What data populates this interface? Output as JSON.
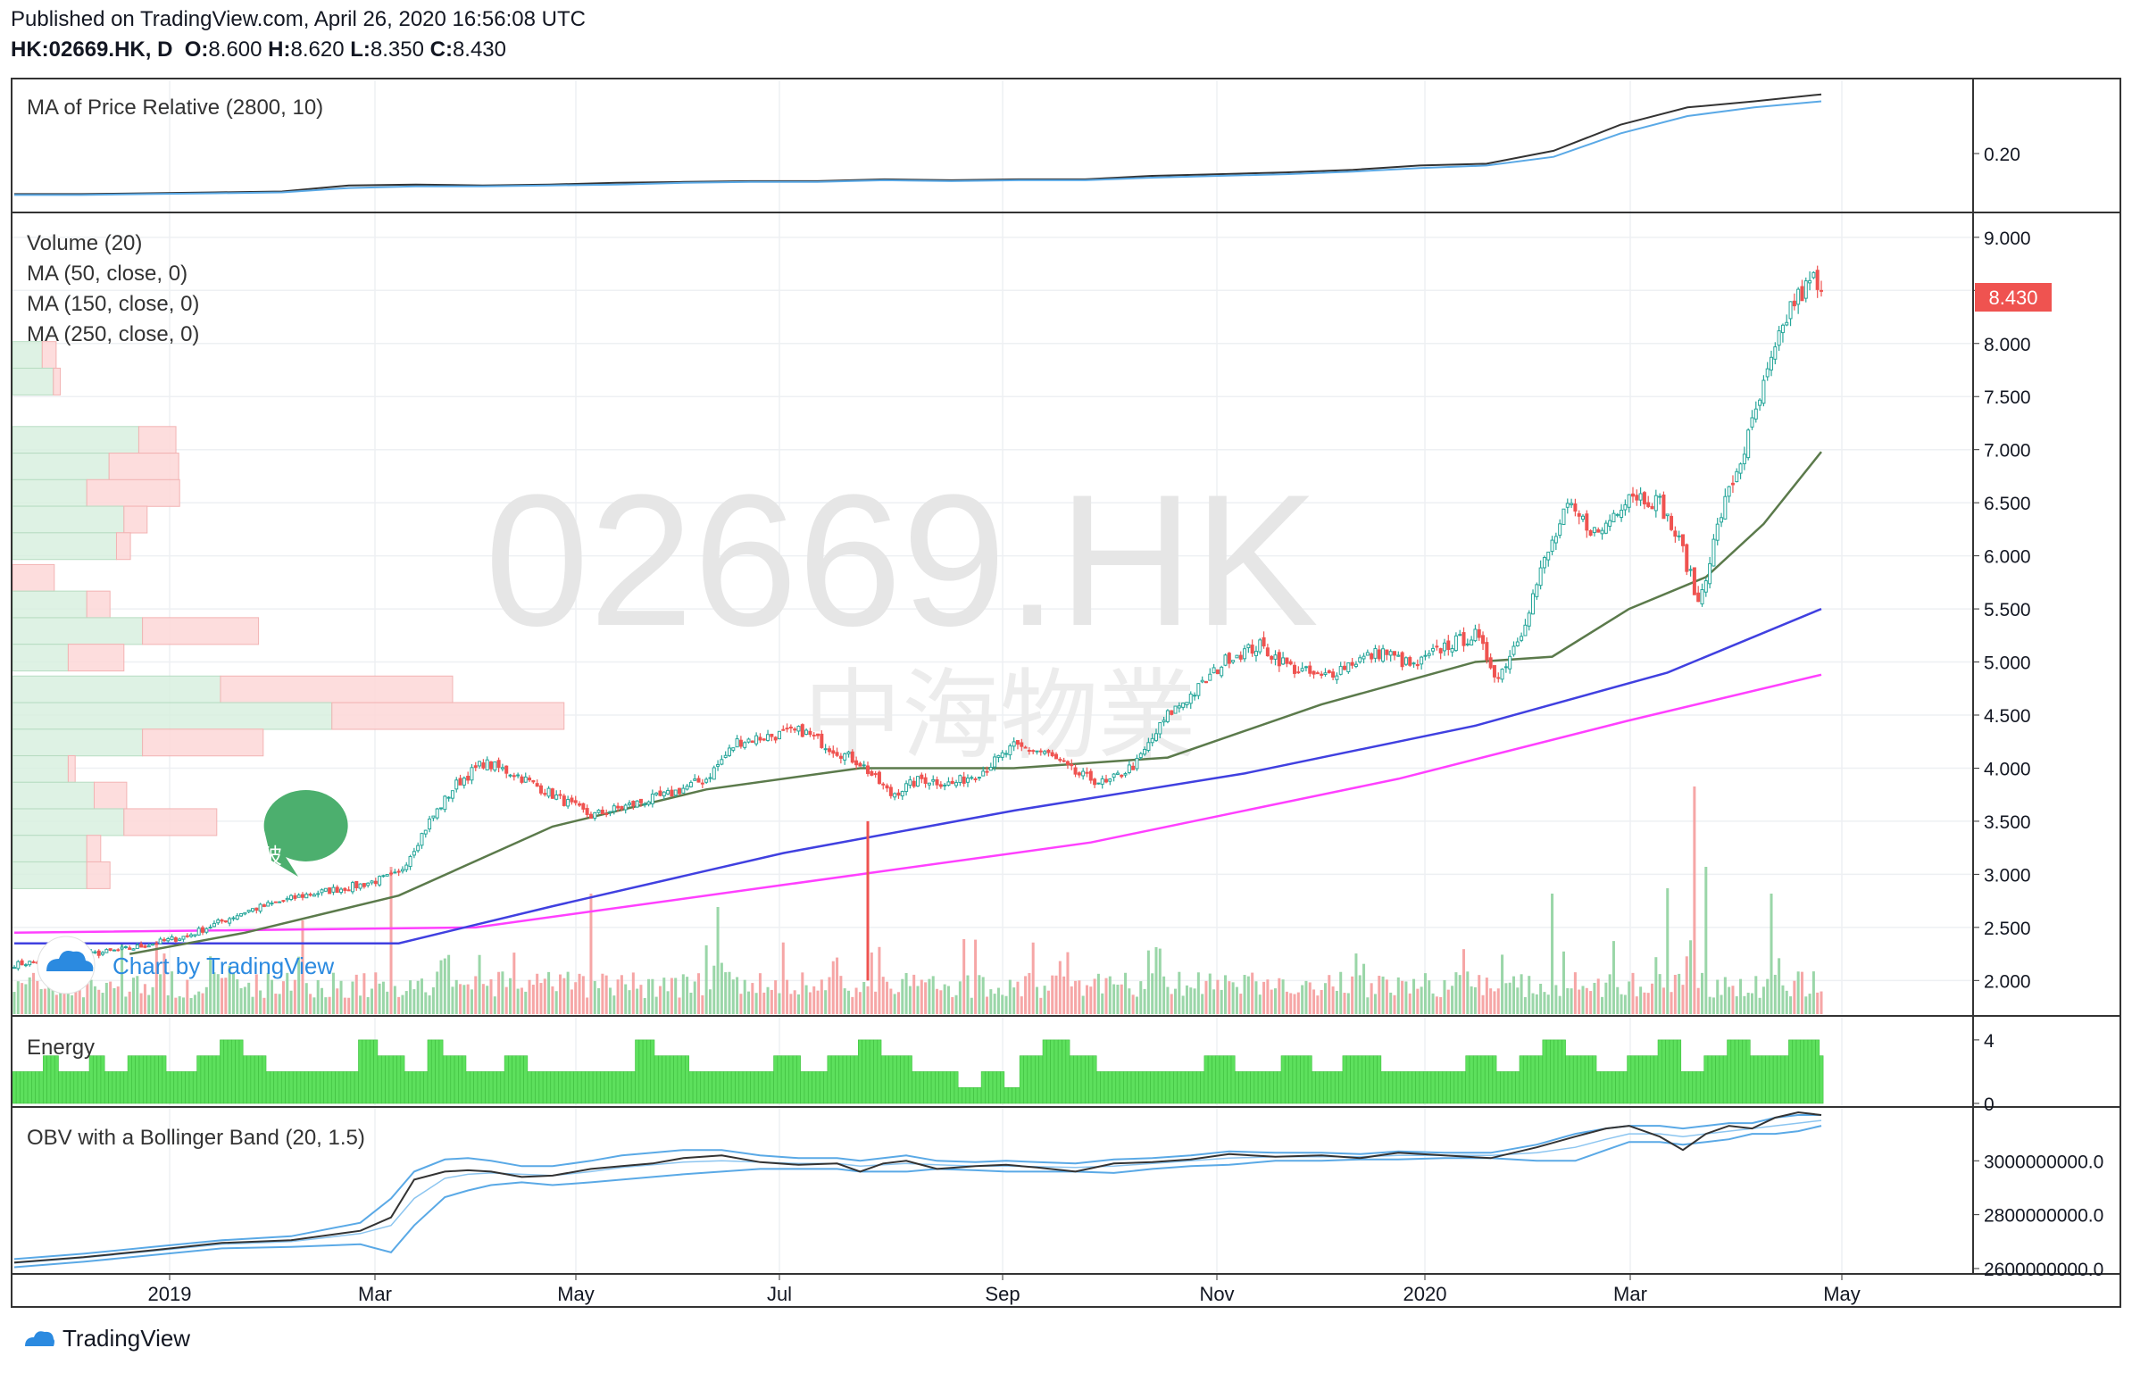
{
  "header": {
    "published": "Published on TradingView.com, April 26, 2020 16:56:08 UTC",
    "symbol": "HK:02669.HK, D",
    "o_label": "O:",
    "o_value": "8.600",
    "h_label": "H:",
    "h_value": "8.620",
    "l_label": "L:",
    "l_value": "8.350",
    "c_label": "C:",
    "c_value": "8.430"
  },
  "watermark": {
    "symbol": "02669.HK",
    "name": "中海物業"
  },
  "brand": {
    "inline": "Chart by TradingView",
    "footer": "TradingView"
  },
  "annotation": {
    "callout": "破",
    "color": "#4caf6e"
  },
  "colors": {
    "up": "#26a69a",
    "down": "#ef5350",
    "ma50": "#5b7a4b",
    "ma150": "#4040e0",
    "ma250": "#ff40ff",
    "energy": "#5de05d",
    "accent_price": "#ef5350"
  },
  "chart_data": [
    {
      "type": "line",
      "panel": "MA of Price Relative (2800, 10)",
      "title": "MA of Price Relative (2800, 10)",
      "yticks": [
        "0.20"
      ],
      "series": [
        {
          "color": "#333333",
          "values": [
            0.155,
            0.155,
            0.156,
            0.157,
            0.158,
            0.165,
            0.166,
            0.165,
            0.166,
            0.168,
            0.169,
            0.17,
            0.17,
            0.172,
            0.171,
            0.172,
            0.172,
            0.176,
            0.178,
            0.18,
            0.183,
            0.188,
            0.19,
            0.205,
            0.235,
            0.255,
            0.262,
            0.27
          ]
        },
        {
          "color": "#5aa9e6",
          "values": [
            0.154,
            0.154,
            0.155,
            0.156,
            0.157,
            0.162,
            0.164,
            0.164,
            0.165,
            0.166,
            0.168,
            0.169,
            0.169,
            0.171,
            0.17,
            0.171,
            0.171,
            0.174,
            0.176,
            0.178,
            0.181,
            0.185,
            0.188,
            0.198,
            0.225,
            0.245,
            0.255,
            0.262
          ]
        }
      ]
    },
    {
      "type": "candlestick",
      "panel": "price",
      "title": "",
      "legend": [
        "Volume (20)",
        "MA (50, close, 0)",
        "MA (150, close, 0)",
        "MA (250, close, 0)"
      ],
      "yticks": [
        "9.000",
        "8.500",
        "8.000",
        "7.500",
        "7.000",
        "6.500",
        "6.000",
        "5.500",
        "5.000",
        "4.500",
        "4.000",
        "3.500",
        "3.000",
        "2.500",
        "2.000"
      ],
      "last_price": "8.430",
      "ylim": [
        1.7,
        9.15
      ],
      "close_path": [
        [
          0,
          2.15
        ],
        [
          15,
          2.22
        ],
        [
          30,
          2.3
        ],
        [
          45,
          2.42
        ],
        [
          60,
          2.65
        ],
        [
          75,
          2.8
        ],
        [
          90,
          2.9
        ],
        [
          100,
          3.0
        ],
        [
          108,
          3.5
        ],
        [
          115,
          3.85
        ],
        [
          122,
          4.05
        ],
        [
          130,
          3.95
        ],
        [
          140,
          3.75
        ],
        [
          150,
          3.55
        ],
        [
          160,
          3.65
        ],
        [
          170,
          3.75
        ],
        [
          180,
          3.9
        ],
        [
          188,
          4.25
        ],
        [
          196,
          4.3
        ],
        [
          205,
          4.35
        ],
        [
          212,
          4.2
        ],
        [
          220,
          4.05
        ],
        [
          228,
          3.75
        ],
        [
          236,
          3.9
        ],
        [
          244,
          3.85
        ],
        [
          252,
          3.98
        ],
        [
          260,
          4.2
        ],
        [
          268,
          4.15
        ],
        [
          276,
          3.95
        ],
        [
          284,
          3.85
        ],
        [
          292,
          4.05
        ],
        [
          300,
          4.5
        ],
        [
          308,
          4.75
        ],
        [
          316,
          5.05
        ],
        [
          324,
          5.15
        ],
        [
          332,
          4.95
        ],
        [
          340,
          4.85
        ],
        [
          348,
          5.0
        ],
        [
          356,
          5.1
        ],
        [
          364,
          4.95
        ],
        [
          372,
          5.15
        ],
        [
          380,
          5.25
        ],
        [
          386,
          4.85
        ],
        [
          392,
          5.3
        ],
        [
          398,
          5.95
        ],
        [
          404,
          6.45
        ],
        [
          412,
          6.2
        ],
        [
          420,
          6.6
        ],
        [
          428,
          6.5
        ],
        [
          434,
          6.05
        ],
        [
          438,
          5.55
        ],
        [
          444,
          6.4
        ],
        [
          450,
          7.0
        ],
        [
          456,
          7.7
        ],
        [
          462,
          8.35
        ],
        [
          468,
          8.6
        ],
        [
          470,
          8.43
        ]
      ],
      "ma50": [
        [
          30,
          2.25
        ],
        [
          60,
          2.45
        ],
        [
          100,
          2.8
        ],
        [
          140,
          3.45
        ],
        [
          180,
          3.8
        ],
        [
          220,
          4.0
        ],
        [
          260,
          4.0
        ],
        [
          300,
          4.1
        ],
        [
          340,
          4.6
        ],
        [
          380,
          5.0
        ],
        [
          400,
          5.05
        ],
        [
          420,
          5.5
        ],
        [
          440,
          5.8
        ],
        [
          455,
          6.3
        ],
        [
          470,
          6.98
        ]
      ],
      "ma150": [
        [
          0,
          2.35
        ],
        [
          100,
          2.35
        ],
        [
          140,
          2.7
        ],
        [
          200,
          3.2
        ],
        [
          260,
          3.6
        ],
        [
          320,
          3.95
        ],
        [
          380,
          4.4
        ],
        [
          430,
          4.9
        ],
        [
          470,
          5.5
        ]
      ],
      "ma250": [
        [
          0,
          2.45
        ],
        [
          120,
          2.5
        ],
        [
          200,
          2.9
        ],
        [
          280,
          3.3
        ],
        [
          360,
          3.9
        ],
        [
          420,
          4.45
        ],
        [
          470,
          4.88
        ]
      ],
      "volume_spikes": [
        [
          75,
          0.35
        ],
        [
          98,
          0.55
        ],
        [
          150,
          0.45
        ],
        [
          183,
          0.4
        ],
        [
          247,
          0.28
        ],
        [
          297,
          0.25
        ],
        [
          400,
          0.45
        ],
        [
          430,
          0.35
        ],
        [
          437,
          0.85
        ],
        [
          440,
          0.55
        ],
        [
          457,
          0.45
        ]
      ],
      "volume_profile": [
        [
          7.9,
          0.08,
          0.06
        ],
        [
          7.65,
          0.11,
          0.03
        ],
        [
          7.1,
          0.34,
          0.16
        ],
        [
          6.85,
          0.26,
          0.3
        ],
        [
          6.6,
          0.2,
          0.4
        ],
        [
          6.35,
          0.3,
          0.1
        ],
        [
          6.1,
          0.28,
          0.06
        ],
        [
          5.8,
          0.0,
          0.18
        ],
        [
          5.55,
          0.2,
          0.1
        ],
        [
          5.3,
          0.35,
          0.5
        ],
        [
          5.05,
          0.15,
          0.24
        ],
        [
          4.75,
          0.56,
          1.0
        ],
        [
          4.5,
          0.86,
          1.0
        ],
        [
          4.25,
          0.35,
          0.52
        ],
        [
          4.0,
          0.15,
          0.03
        ],
        [
          3.75,
          0.22,
          0.14
        ],
        [
          3.5,
          0.3,
          0.4
        ],
        [
          3.25,
          0.2,
          0.06
        ],
        [
          3.0,
          0.2,
          0.1
        ]
      ],
      "event_line": {
        "x": 222,
        "from": 2.0,
        "to": 3.5
      }
    },
    {
      "type": "bar",
      "panel": "Energy",
      "title": "Energy",
      "yticks": [
        "4",
        "0"
      ],
      "ylim": [
        0,
        4.5
      ],
      "segments": [
        [
          0,
          2
        ],
        [
          8,
          3
        ],
        [
          12,
          2
        ],
        [
          20,
          3
        ],
        [
          24,
          2
        ],
        [
          30,
          3
        ],
        [
          40,
          2
        ],
        [
          48,
          3
        ],
        [
          54,
          4
        ],
        [
          60,
          3
        ],
        [
          66,
          2
        ],
        [
          80,
          2
        ],
        [
          90,
          4
        ],
        [
          95,
          3
        ],
        [
          102,
          2
        ],
        [
          108,
          4
        ],
        [
          112,
          3
        ],
        [
          118,
          2
        ],
        [
          128,
          3
        ],
        [
          134,
          2
        ],
        [
          150,
          2
        ],
        [
          162,
          4
        ],
        [
          167,
          3
        ],
        [
          176,
          2
        ],
        [
          186,
          2
        ],
        [
          198,
          3
        ],
        [
          205,
          2
        ],
        [
          212,
          3
        ],
        [
          220,
          4
        ],
        [
          226,
          3
        ],
        [
          234,
          2
        ],
        [
          246,
          1
        ],
        [
          252,
          2
        ],
        [
          258,
          1
        ],
        [
          262,
          3
        ],
        [
          268,
          4
        ],
        [
          275,
          3
        ],
        [
          282,
          2
        ],
        [
          296,
          2
        ],
        [
          310,
          3
        ],
        [
          318,
          2
        ],
        [
          330,
          3
        ],
        [
          338,
          2
        ],
        [
          346,
          3
        ],
        [
          356,
          2
        ],
        [
          366,
          2
        ],
        [
          378,
          3
        ],
        [
          386,
          2
        ],
        [
          392,
          3
        ],
        [
          398,
          4
        ],
        [
          404,
          3
        ],
        [
          412,
          2
        ],
        [
          420,
          3
        ],
        [
          428,
          4
        ],
        [
          434,
          2
        ],
        [
          440,
          3
        ],
        [
          446,
          4
        ],
        [
          452,
          3
        ],
        [
          462,
          4
        ],
        [
          470,
          3
        ]
      ]
    },
    {
      "type": "line",
      "panel": "OBV with a Bollinger Band (20, 1.5)",
      "title": "OBV with a Bollinger Band (20, 1.5)",
      "yticks": [
        "3000000000.0",
        "2800000000.0",
        "2600000000.0"
      ],
      "ylim": [
        2590000000,
        3180000000
      ],
      "x": [
        0,
        18,
        36,
        54,
        72,
        90,
        98,
        104,
        112,
        118,
        124,
        132,
        140,
        150,
        158,
        166,
        174,
        184,
        194,
        204,
        214,
        220,
        226,
        232,
        240,
        250,
        258,
        266,
        276,
        286,
        296,
        306,
        316,
        328,
        340,
        350,
        360,
        372,
        384,
        396,
        406,
        414,
        420,
        428,
        434,
        440,
        446,
        452,
        458,
        464,
        470
      ],
      "obv": [
        2.622,
        2.642,
        2.668,
        2.695,
        2.705,
        2.74,
        2.79,
        2.93,
        2.96,
        2.965,
        2.96,
        2.94,
        2.945,
        2.97,
        2.98,
        2.99,
        3.01,
        3.02,
        2.995,
        2.985,
        2.99,
        2.96,
        2.99,
        3.0,
        2.97,
        2.98,
        2.985,
        2.975,
        2.96,
        2.99,
        2.995,
        3.005,
        3.025,
        3.015,
        3.02,
        3.01,
        3.03,
        3.02,
        3.01,
        3.05,
        3.09,
        3.12,
        3.13,
        3.09,
        3.04,
        3.1,
        3.13,
        3.12,
        3.16,
        3.18,
        3.17
      ],
      "upper": [
        2.635,
        2.655,
        2.68,
        2.705,
        2.72,
        2.77,
        2.86,
        2.96,
        3.005,
        3.01,
        3.0,
        2.98,
        2.98,
        3.0,
        3.02,
        3.03,
        3.04,
        3.04,
        3.02,
        3.01,
        3.01,
        3.0,
        3.01,
        3.02,
        3.0,
        2.995,
        3.0,
        2.995,
        2.99,
        3.005,
        3.01,
        3.02,
        3.035,
        3.03,
        3.03,
        3.025,
        3.035,
        3.03,
        3.03,
        3.06,
        3.1,
        3.12,
        3.13,
        3.13,
        3.12,
        3.13,
        3.14,
        3.14,
        3.16,
        3.17,
        3.17
      ],
      "mid": [
        2.62,
        2.64,
        2.665,
        2.69,
        2.7,
        2.73,
        2.76,
        2.86,
        2.935,
        2.95,
        2.955,
        2.95,
        2.945,
        2.96,
        2.975,
        2.985,
        2.995,
        3.0,
        2.995,
        2.99,
        2.99,
        2.98,
        2.985,
        2.99,
        2.985,
        2.98,
        2.98,
        2.978,
        2.975,
        2.98,
        2.99,
        3.0,
        3.01,
        3.015,
        3.015,
        3.015,
        3.02,
        3.02,
        3.02,
        3.03,
        3.05,
        3.08,
        3.1,
        3.1,
        3.09,
        3.1,
        3.11,
        3.12,
        3.13,
        3.14,
        3.15
      ],
      "lower": [
        2.605,
        2.625,
        2.65,
        2.675,
        2.68,
        2.69,
        2.66,
        2.76,
        2.865,
        2.89,
        2.91,
        2.92,
        2.91,
        2.92,
        2.93,
        2.94,
        2.95,
        2.96,
        2.97,
        2.97,
        2.97,
        2.96,
        2.96,
        2.96,
        2.97,
        2.965,
        2.96,
        2.96,
        2.96,
        2.955,
        2.97,
        2.98,
        2.985,
        3.0,
        3.0,
        3.005,
        3.005,
        3.01,
        3.01,
        3.0,
        3.0,
        3.04,
        3.07,
        3.07,
        3.06,
        3.07,
        3.08,
        3.1,
        3.1,
        3.11,
        3.13
      ]
    }
  ],
  "xaxis": {
    "labels": [
      "2019",
      "Mar",
      "May",
      "Jul",
      "Sep",
      "Nov",
      "2020",
      "Mar",
      "May"
    ],
    "positions": [
      20,
      54,
      87,
      120,
      156,
      191,
      224,
      257,
      292
    ]
  }
}
